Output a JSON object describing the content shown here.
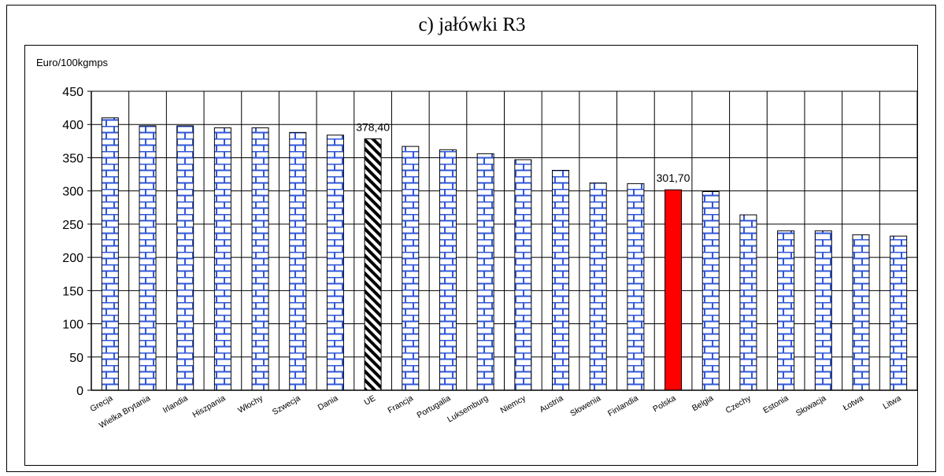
{
  "chart_data": {
    "type": "bar",
    "title": "c) jałówki R3",
    "ylabel": "Euro/100kgmps",
    "xlabel": "",
    "ylim": [
      0,
      450
    ],
    "yticks": [
      0,
      50,
      100,
      150,
      200,
      250,
      300,
      350,
      400,
      450
    ],
    "grid": true,
    "categories": [
      "Grecja",
      "Wielka Brytania",
      "Irlandia",
      "Hiszpania",
      "Włochy",
      "Szwecja",
      "Dania",
      "UE",
      "Francja",
      "Portugalia",
      "Luksemburg",
      "Niemcy",
      "Austria",
      "Słowenia",
      "Finlandia",
      "Polska",
      "Belgia",
      "Czechy",
      "Estonia",
      "Słowacja",
      "Łotwa",
      "Litwa"
    ],
    "values": [
      410,
      398,
      398,
      395,
      395,
      388,
      384,
      378.4,
      367,
      362,
      356,
      347,
      331,
      312,
      311,
      301.7,
      299,
      264,
      240,
      240,
      234,
      232
    ],
    "data_labels": {
      "UE": "378,40",
      "Polska": "301,70"
    },
    "colors": {
      "brick_fill": "#ffffff",
      "brick_line": "#2f56d8",
      "eu_hatch": "#000000",
      "highlight": "#ff0000"
    },
    "bar_styles": {
      "UE": "hatch",
      "Polska": "highlight",
      "default": "brick"
    }
  }
}
